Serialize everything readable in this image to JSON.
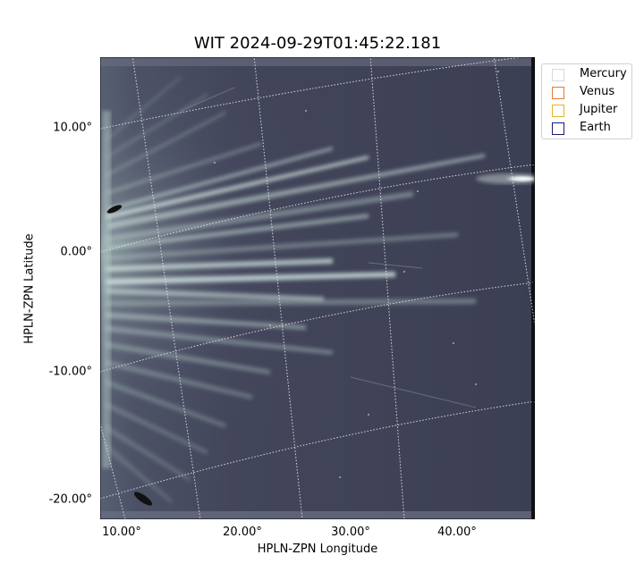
{
  "title": "WIT 2024-09-29T01:45:22.181",
  "axes": {
    "xlabel": "HPLN-ZPN Longitude",
    "ylabel": "HPLN-ZPN Latitude",
    "xticks": [
      "10.00°",
      "20.00°",
      "30.00°",
      "40.00°"
    ],
    "yticks": [
      "10.00°",
      "0.00°",
      "-10.00°",
      "-20.00°"
    ]
  },
  "legend": {
    "entries": [
      {
        "label": "Mercury",
        "color": "#d9d9d9"
      },
      {
        "label": "Venus",
        "color": "#e07b39"
      },
      {
        "label": "Jupiter",
        "color": "#e6b422"
      },
      {
        "label": "Earth",
        "color": "#1a1a7a"
      }
    ]
  },
  "image": {
    "description_colormap": "bone",
    "background_color": "#3f4156",
    "streamer_color": "#c7dcd6",
    "grid_color": "#e8e8e8"
  }
}
